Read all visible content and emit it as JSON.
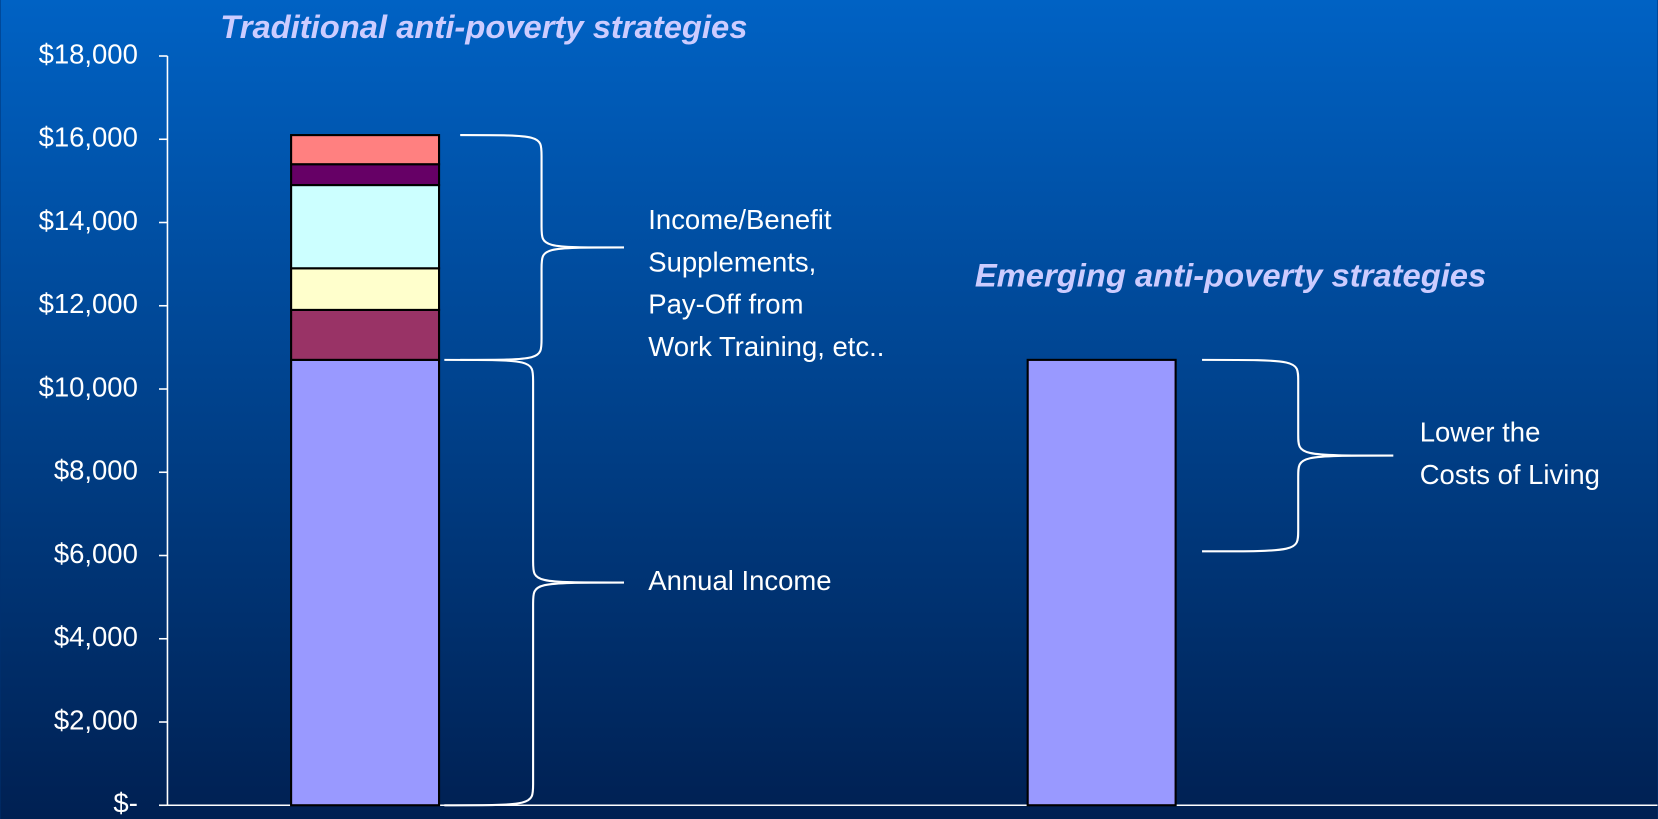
{
  "chart_data": {
    "type": "stacked_bar",
    "group_titles": [
      "Traditional anti-poverty strategies",
      "Emerging anti-poverty strategies"
    ],
    "categories": [
      null,
      null
    ],
    "series": [
      {
        "color": "#9999ff",
        "values": [
          10700,
          10700
        ]
      },
      {
        "color": "#993366",
        "values": [
          1200,
          null
        ]
      },
      {
        "color": "#ffffcc",
        "values": [
          1000,
          null
        ]
      },
      {
        "color": "#ccffff",
        "values": [
          2000,
          null
        ]
      },
      {
        "color": "#660066",
        "values": [
          500,
          null
        ]
      },
      {
        "color": "#ff8080",
        "values": [
          700,
          null
        ]
      }
    ],
    "ylim": [
      0,
      18000
    ],
    "yticks": [
      {
        "value": 0,
        "label": "$-"
      },
      {
        "value": 2000,
        "label": "$2,000"
      },
      {
        "value": 4000,
        "label": "$4,000"
      },
      {
        "value": 6000,
        "label": "$6,000"
      },
      {
        "value": 8000,
        "label": "$8,000"
      },
      {
        "value": 10000,
        "label": "$10,000"
      },
      {
        "value": 12000,
        "label": "$12,000"
      },
      {
        "value": 14000,
        "label": "$14,000"
      },
      {
        "value": 16000,
        "label": "$16,000"
      },
      {
        "value": 18000,
        "label": "$18,000"
      }
    ],
    "annotations": [
      {
        "lines": [
          "Income/Benefit",
          "Supplements,",
          "Pay-Off from",
          "Work Training, etc.."
        ],
        "span": [
          10700,
          16100
        ]
      },
      {
        "lines": [
          "Annual Income"
        ],
        "span": [
          0,
          10700
        ]
      },
      {
        "lines": [
          "Lower the",
          "Costs of Living"
        ],
        "span": [
          6100,
          10700
        ]
      }
    ]
  }
}
